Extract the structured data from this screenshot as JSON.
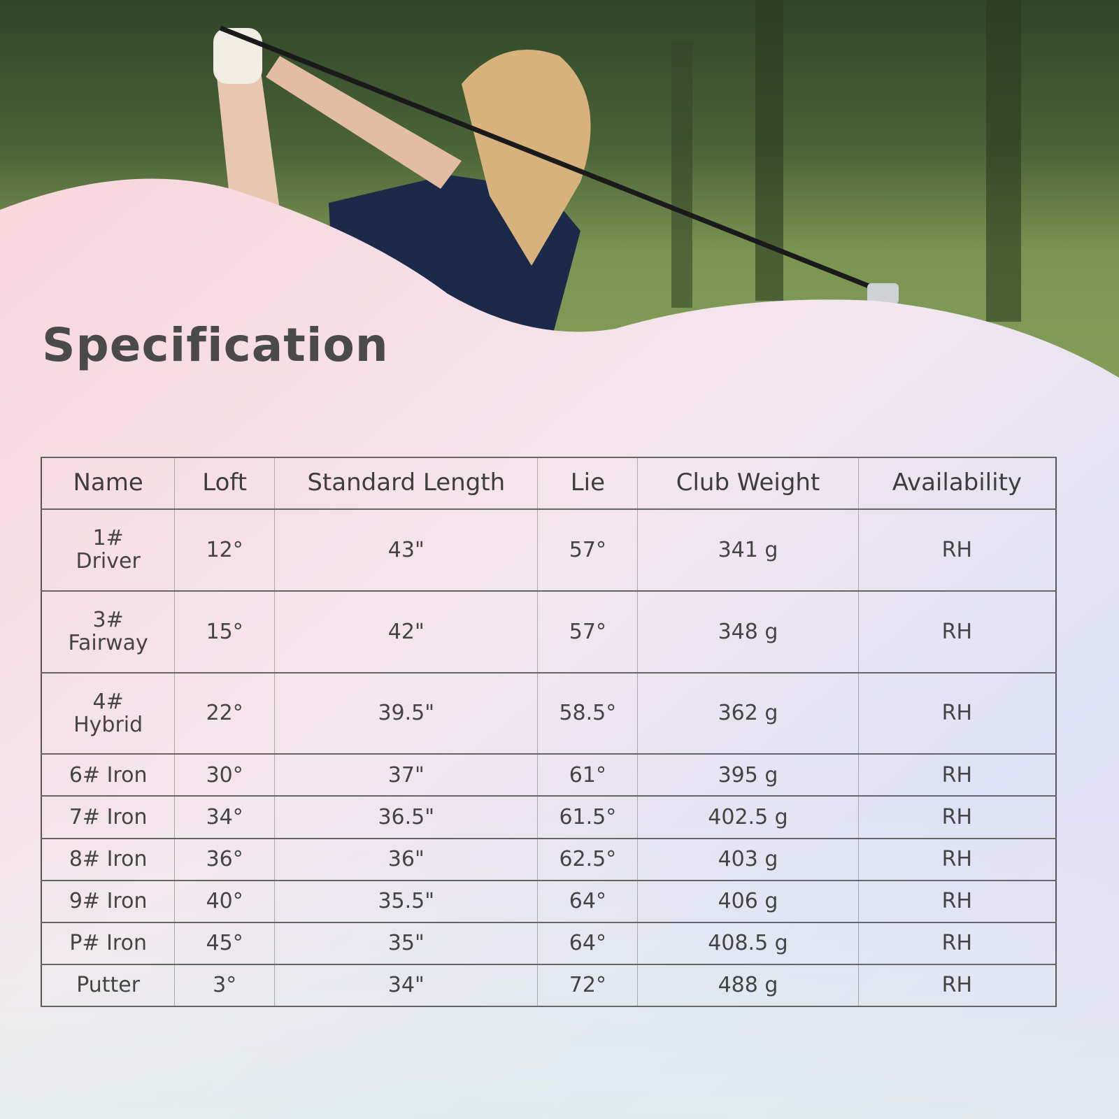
{
  "title": "Specification",
  "colors": {
    "text": "#444444",
    "border": "#555555",
    "grass": "#6f8a4a",
    "shirt": "#1c2a4a"
  },
  "table": {
    "headers": [
      "Name",
      "Loft",
      "Standard Length",
      "Lie",
      "Club Weight",
      "Availability"
    ],
    "rows": [
      [
        "1#\nDriver",
        "12°",
        "43\"",
        "57°",
        "341 g",
        "RH"
      ],
      [
        "3#\nFairway",
        "15°",
        "42\"",
        "57°",
        "348 g",
        "RH"
      ],
      [
        "4#\nHybrid",
        "22°",
        "39.5\"",
        "58.5°",
        "362 g",
        "RH"
      ],
      [
        "6# Iron",
        "30°",
        "37\"",
        "61°",
        "395 g",
        "RH"
      ],
      [
        "7# Iron",
        "34°",
        "36.5\"",
        "61.5°",
        "402.5 g",
        "RH"
      ],
      [
        "8# Iron",
        "36°",
        "36\"",
        "62.5°",
        "403 g",
        "RH"
      ],
      [
        "9# Iron",
        "40°",
        "35.5\"",
        "64°",
        "406 g",
        "RH"
      ],
      [
        "P# Iron",
        "45°",
        "35\"",
        "64°",
        "408.5 g",
        "RH"
      ],
      [
        "Putter",
        "3°",
        "34\"",
        "72°",
        "488 g",
        "RH"
      ]
    ]
  }
}
